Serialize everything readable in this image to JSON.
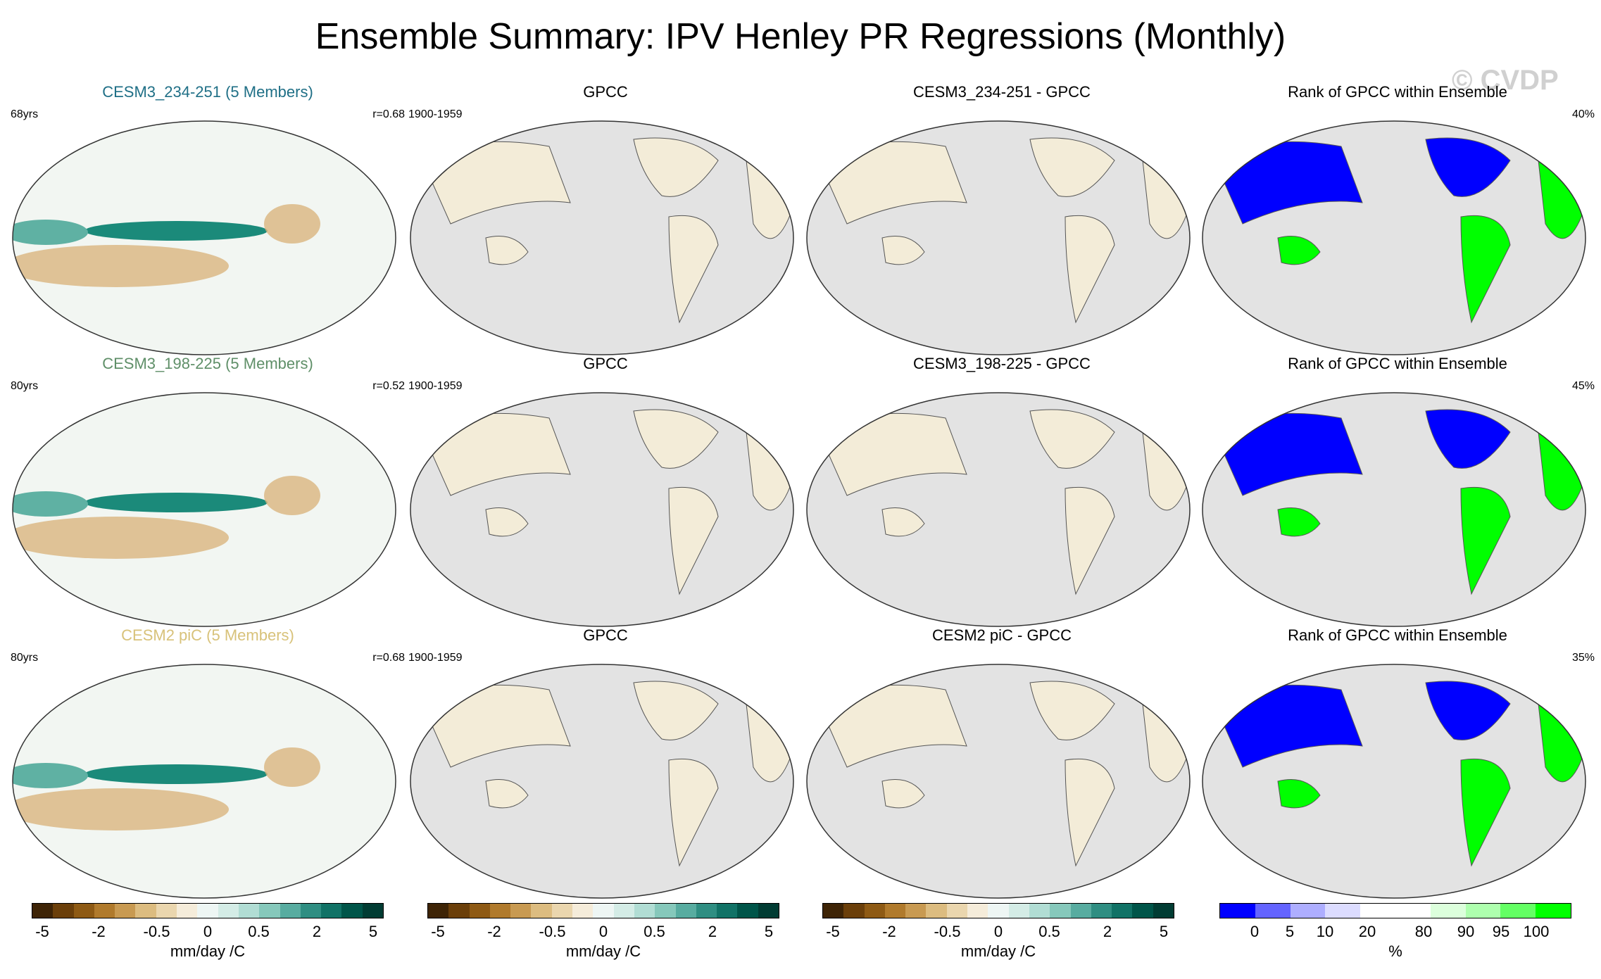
{
  "title": "Ensemble Summary: IPV Henley PR Regressions (Monthly)",
  "watermark": "© CVDP",
  "rows": [
    {
      "model": {
        "title": "CESM3_234-251 (5 Members)",
        "title_color": "#1f6f86",
        "left": "68yrs",
        "right": "r=0.68"
      },
      "obs": {
        "title": "GPCC",
        "left": "1900-1959",
        "right": ""
      },
      "diff": {
        "title": "CESM3_234-251 - GPCC",
        "left": "",
        "right": ""
      },
      "rank": {
        "title": "Rank of GPCC within Ensemble",
        "left": "",
        "right": "40%"
      }
    },
    {
      "model": {
        "title": "CESM3_198-225 (5 Members)",
        "title_color": "#5f8f68",
        "left": "80yrs",
        "right": "r=0.52"
      },
      "obs": {
        "title": "GPCC",
        "left": "1900-1959",
        "right": ""
      },
      "diff": {
        "title": "CESM3_198-225 - GPCC",
        "left": "",
        "right": ""
      },
      "rank": {
        "title": "Rank of GPCC within Ensemble",
        "left": "",
        "right": "45%"
      }
    },
    {
      "model": {
        "title": "CESM2 piC (5 Members)",
        "title_color": "#d8c27a",
        "left": "80yrs",
        "right": "r=0.68"
      },
      "obs": {
        "title": "GPCC",
        "left": "1900-1959",
        "right": ""
      },
      "diff": {
        "title": "CESM2 piC - GPCC",
        "left": "",
        "right": ""
      },
      "rank": {
        "title": "Rank of GPCC within Ensemble",
        "left": "",
        "right": "35%"
      }
    }
  ],
  "colorbars": [
    {
      "unit": "mm/day /C",
      "colors": [
        "#3e2406",
        "#6b3f0a",
        "#8e5a14",
        "#b07a2c",
        "#c89a52",
        "#dcbc80",
        "#ead6ae",
        "#f5ecda",
        "#eef6f4",
        "#d4ece6",
        "#b1ddd4",
        "#86c8bb",
        "#58aca0",
        "#2f8e82",
        "#117266",
        "#005549",
        "#013c33"
      ],
      "ticks": [
        {
          "label": "-5",
          "frac": 0.03
        },
        {
          "label": "-2",
          "frac": 0.19
        },
        {
          "label": "-0.5",
          "frac": 0.355
        },
        {
          "label": "0",
          "frac": 0.5
        },
        {
          "label": "0.5",
          "frac": 0.645
        },
        {
          "label": "2",
          "frac": 0.81
        },
        {
          "label": "5",
          "frac": 0.97
        }
      ]
    },
    {
      "unit": "mm/day /C",
      "colors": [
        "#3e2406",
        "#6b3f0a",
        "#8e5a14",
        "#b07a2c",
        "#c89a52",
        "#dcbc80",
        "#ead6ae",
        "#f5ecda",
        "#eef6f4",
        "#d4ece6",
        "#b1ddd4",
        "#86c8bb",
        "#58aca0",
        "#2f8e82",
        "#117266",
        "#005549",
        "#013c33"
      ],
      "ticks": [
        {
          "label": "-5",
          "frac": 0.03
        },
        {
          "label": "-2",
          "frac": 0.19
        },
        {
          "label": "-0.5",
          "frac": 0.355
        },
        {
          "label": "0",
          "frac": 0.5
        },
        {
          "label": "0.5",
          "frac": 0.645
        },
        {
          "label": "2",
          "frac": 0.81
        },
        {
          "label": "5",
          "frac": 0.97
        }
      ]
    },
    {
      "unit": "mm/day /C",
      "colors": [
        "#3e2406",
        "#6b3f0a",
        "#8e5a14",
        "#b07a2c",
        "#c89a52",
        "#dcbc80",
        "#ead6ae",
        "#f5ecda",
        "#eef6f4",
        "#d4ece6",
        "#b1ddd4",
        "#86c8bb",
        "#58aca0",
        "#2f8e82",
        "#117266",
        "#005549",
        "#013c33"
      ],
      "ticks": [
        {
          "label": "-5",
          "frac": 0.03
        },
        {
          "label": "-2",
          "frac": 0.19
        },
        {
          "label": "-0.5",
          "frac": 0.355
        },
        {
          "label": "0",
          "frac": 0.5
        },
        {
          "label": "0.5",
          "frac": 0.645
        },
        {
          "label": "2",
          "frac": 0.81
        },
        {
          "label": "5",
          "frac": 0.97
        }
      ]
    },
    {
      "unit": "%",
      "colors": [
        "#0000ff",
        "#6464ff",
        "#aeaeff",
        "#dcdcff",
        "#ffffff",
        "#ffffff",
        "#dcffdc",
        "#aeffae",
        "#64ff64",
        "#00ff00"
      ],
      "ticks": [
        {
          "label": "0",
          "frac": 0.1
        },
        {
          "label": "5",
          "frac": 0.2
        },
        {
          "label": "10",
          "frac": 0.3
        },
        {
          "label": "20",
          "frac": 0.42
        },
        {
          "label": "80",
          "frac": 0.58
        },
        {
          "label": "90",
          "frac": 0.7
        },
        {
          "label": "95",
          "frac": 0.8
        },
        {
          "label": "100",
          "frac": 0.9
        }
      ]
    }
  ]
}
